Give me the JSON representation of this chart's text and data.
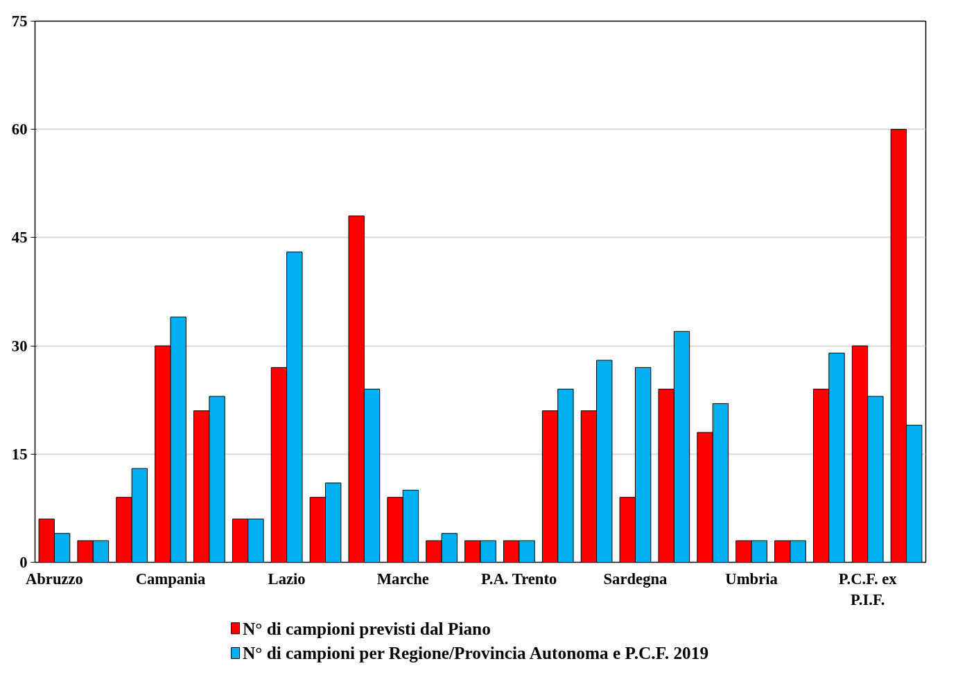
{
  "chart_data": {
    "type": "bar",
    "categories": [
      "Abruzzo",
      null,
      null,
      "Campania",
      null,
      null,
      "Lazio",
      null,
      null,
      "Marche",
      null,
      null,
      "P.A. Trento",
      null,
      null,
      "Sardegna",
      null,
      null,
      "Umbria",
      null,
      null,
      "P.C.F. ex P.I.F.",
      null
    ],
    "series": [
      {
        "name": "N° di campioni  previsti dal Piano",
        "color": "#ff0000",
        "values": [
          6,
          3,
          9,
          30,
          21,
          6,
          27,
          9,
          48,
          9,
          3,
          3,
          3,
          21,
          21,
          9,
          24,
          18,
          3,
          3,
          24,
          30,
          60
        ]
      },
      {
        "name": "N° di campioni per Regione/Provincia Autonoma e P.C.F. 2019",
        "color": "#00b0f0",
        "values": [
          4,
          3,
          13,
          34,
          23,
          6,
          43,
          11,
          24,
          10,
          4,
          3,
          3,
          24,
          28,
          27,
          32,
          22,
          3,
          3,
          29,
          23,
          19
        ]
      }
    ],
    "ylim": [
      0,
      75
    ],
    "yticks": [
      0,
      15,
      30,
      45,
      60,
      75
    ],
    "grid": "y",
    "legend": "bottom"
  }
}
